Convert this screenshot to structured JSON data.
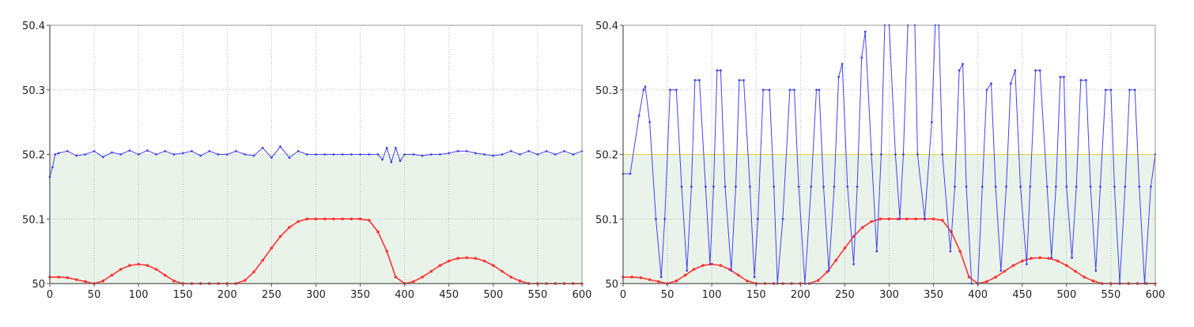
{
  "chart_data": [
    {
      "type": "line",
      "title": "",
      "xlabel": "",
      "ylabel": "",
      "xlim": [
        0,
        600
      ],
      "ylim": [
        50,
        50.4
      ],
      "x_ticks": [
        "0",
        "50",
        "100",
        "150",
        "200",
        "250",
        "300",
        "350",
        "400",
        "450",
        "500",
        "550",
        "600"
      ],
      "y_ticks": [
        "50",
        "50.1",
        "50.2",
        "50.3",
        "50.4"
      ],
      "grid": true,
      "fill_below": 50.2,
      "series": [
        {
          "role": "lower-bound",
          "color": "#ff3333",
          "marker": "dots",
          "x": [
            0,
            10,
            20,
            30,
            40,
            50,
            60,
            70,
            80,
            90,
            100,
            110,
            120,
            130,
            140,
            150,
            160,
            170,
            180,
            190,
            200,
            210,
            220,
            230,
            240,
            250,
            260,
            270,
            280,
            290,
            300,
            310,
            320,
            330,
            340,
            350,
            360,
            370,
            380,
            390,
            400,
            410,
            420,
            430,
            440,
            450,
            460,
            470,
            480,
            490,
            500,
            510,
            520,
            530,
            540,
            550,
            560,
            570,
            580,
            590,
            600
          ],
          "y": [
            50.01,
            50.01,
            50.009,
            50.006,
            50.003,
            50.0,
            50.004,
            50.013,
            50.022,
            50.028,
            50.03,
            50.028,
            50.022,
            50.013,
            50.004,
            50.0,
            50.0,
            50.0,
            50.0,
            50.0,
            50.0,
            50.0,
            50.005,
            50.018,
            50.036,
            50.055,
            50.073,
            50.087,
            50.096,
            50.1,
            50.1,
            50.1,
            50.1,
            50.1,
            50.1,
            50.1,
            50.098,
            50.08,
            50.05,
            50.01,
            50.0,
            50.003,
            50.01,
            50.019,
            50.028,
            50.035,
            50.039,
            50.04,
            50.039,
            50.035,
            50.028,
            50.019,
            50.01,
            50.004,
            50.0,
            50.0,
            50.0,
            50.0,
            50.0,
            50.0,
            50.0
          ]
        },
        {
          "role": "frequency",
          "color": "#4444ee",
          "x": [
            0,
            3,
            6,
            10,
            20,
            30,
            40,
            50,
            60,
            70,
            80,
            90,
            100,
            110,
            120,
            130,
            140,
            150,
            160,
            170,
            180,
            190,
            200,
            210,
            220,
            230,
            240,
            250,
            260,
            270,
            280,
            290,
            300,
            310,
            320,
            330,
            340,
            350,
            360,
            370,
            375,
            380,
            385,
            390,
            395,
            400,
            410,
            420,
            430,
            440,
            450,
            460,
            470,
            480,
            490,
            500,
            510,
            520,
            530,
            540,
            550,
            560,
            570,
            580,
            590,
            600
          ],
          "y": [
            50.165,
            50.18,
            50.2,
            50.202,
            50.205,
            50.198,
            50.2,
            50.205,
            50.196,
            50.203,
            50.2,
            50.206,
            50.2,
            50.206,
            50.2,
            50.205,
            50.2,
            50.202,
            50.205,
            50.198,
            50.205,
            50.2,
            50.2,
            50.205,
            50.2,
            50.198,
            50.21,
            50.195,
            50.212,
            50.195,
            50.205,
            50.2,
            50.2,
            50.2,
            50.2,
            50.2,
            50.2,
            50.2,
            50.2,
            50.2,
            50.192,
            50.21,
            50.188,
            50.21,
            50.19,
            50.2,
            50.2,
            50.198,
            50.2,
            50.2,
            50.202,
            50.205,
            50.205,
            50.202,
            50.2,
            50.198,
            50.2,
            50.205,
            50.2,
            50.205,
            50.2,
            50.205,
            50.2,
            50.205,
            50.2,
            50.205
          ]
        }
      ]
    },
    {
      "type": "line",
      "title": "",
      "xlabel": "",
      "ylabel": "",
      "xlim": [
        0,
        600
      ],
      "ylim": [
        50,
        50.4
      ],
      "x_ticks": [
        "0",
        "50",
        "100",
        "150",
        "200",
        "250",
        "300",
        "350",
        "400",
        "450",
        "500",
        "550",
        "600"
      ],
      "y_ticks": [
        "50",
        "50.1",
        "50.2",
        "50.3",
        "50.4"
      ],
      "grid": true,
      "fill_below": 50.2,
      "reference_line": {
        "y": 50.2,
        "color": "#dddd55"
      },
      "series": [
        {
          "role": "lower-bound",
          "color": "#ff3333",
          "marker": "dots",
          "x": [
            0,
            10,
            20,
            30,
            40,
            50,
            60,
            70,
            80,
            90,
            100,
            110,
            120,
            130,
            140,
            150,
            160,
            170,
            180,
            190,
            200,
            210,
            220,
            230,
            240,
            250,
            260,
            270,
            280,
            290,
            300,
            310,
            320,
            330,
            340,
            350,
            360,
            370,
            380,
            390,
            400,
            410,
            420,
            430,
            440,
            450,
            460,
            470,
            480,
            490,
            500,
            510,
            520,
            530,
            540,
            550,
            560,
            570,
            580,
            590,
            600
          ],
          "y": [
            50.01,
            50.01,
            50.009,
            50.006,
            50.003,
            50.0,
            50.004,
            50.013,
            50.022,
            50.028,
            50.03,
            50.028,
            50.022,
            50.013,
            50.004,
            50.0,
            50.0,
            50.0,
            50.0,
            50.0,
            50.0,
            50.0,
            50.005,
            50.018,
            50.036,
            50.055,
            50.073,
            50.087,
            50.096,
            50.1,
            50.1,
            50.1,
            50.1,
            50.1,
            50.1,
            50.1,
            50.098,
            50.08,
            50.05,
            50.01,
            50.0,
            50.003,
            50.01,
            50.019,
            50.028,
            50.035,
            50.039,
            50.04,
            50.039,
            50.035,
            50.028,
            50.019,
            50.01,
            50.004,
            50.0,
            50.0,
            50.0,
            50.0,
            50.0,
            50.0,
            50.0
          ]
        },
        {
          "role": "frequency",
          "color": "#4444ee",
          "x": [
            0,
            8,
            18,
            23,
            25,
            30,
            37,
            43,
            47,
            53,
            60,
            66,
            72,
            77,
            81,
            86,
            93,
            98,
            102,
            106,
            110,
            115,
            122,
            127,
            131,
            136,
            143,
            148,
            152,
            158,
            165,
            170,
            174,
            180,
            188,
            193,
            198,
            205,
            212,
            218,
            221,
            226,
            232,
            238,
            243,
            247,
            253,
            260,
            264,
            269,
            273,
            280,
            286,
            291,
            295,
            300,
            307,
            312,
            316,
            321,
            329,
            332,
            340,
            348,
            352,
            356,
            360,
            369,
            374,
            379,
            383,
            387,
            393,
            400,
            405,
            410,
            415,
            420,
            426,
            432,
            437,
            442,
            448,
            455,
            459,
            465,
            470,
            478,
            483,
            488,
            493,
            497,
            500,
            506,
            511,
            516,
            522,
            527,
            533,
            538,
            544,
            550,
            554,
            560,
            566,
            571,
            577,
            582,
            588,
            595,
            600
          ],
          "y": [
            50.17,
            50.17,
            50.26,
            50.3,
            50.305,
            50.25,
            50.1,
            50.01,
            50.1,
            50.3,
            50.3,
            50.15,
            50.02,
            50.15,
            50.315,
            50.315,
            50.15,
            50.03,
            50.15,
            50.33,
            50.33,
            50.15,
            50.02,
            50.15,
            50.315,
            50.315,
            50.15,
            50.01,
            50.1,
            50.3,
            50.3,
            50.15,
            50.0,
            50.1,
            50.3,
            50.3,
            50.15,
            50.0,
            50.15,
            50.3,
            50.3,
            50.15,
            50.02,
            50.15,
            50.32,
            50.34,
            50.15,
            50.03,
            50.15,
            50.35,
            50.39,
            50.2,
            50.05,
            50.2,
            50.4,
            50.4,
            50.2,
            50.1,
            50.2,
            50.4,
            50.4,
            50.2,
            50.1,
            50.25,
            50.4,
            50.4,
            50.2,
            50.05,
            50.15,
            50.33,
            50.34,
            50.15,
            50.0,
            50.0,
            50.15,
            50.3,
            50.31,
            50.15,
            50.02,
            50.15,
            50.31,
            50.33,
            50.15,
            50.03,
            50.15,
            50.33,
            50.33,
            50.15,
            50.04,
            50.15,
            50.32,
            50.32,
            50.15,
            50.04,
            50.15,
            50.315,
            50.315,
            50.15,
            50.02,
            50.15,
            50.3,
            50.3,
            50.15,
            50.0,
            50.15,
            50.3,
            50.3,
            50.15,
            50.0,
            50.15,
            50.2
          ]
        }
      ]
    }
  ]
}
